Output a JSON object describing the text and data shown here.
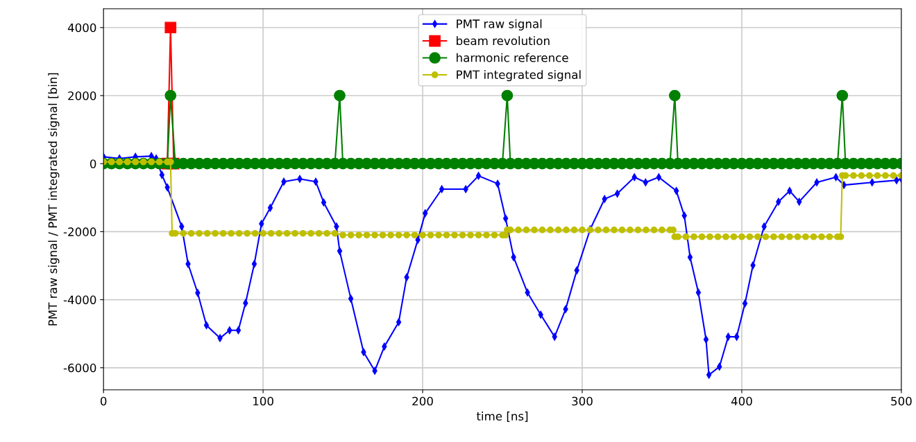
{
  "chart_data": {
    "type": "line",
    "xlabel": "time [ns]",
    "ylabel": "PMT raw signal / PMT integrated signal [bin]",
    "xlim": [
      0,
      500
    ],
    "xticks": [
      0,
      100,
      200,
      300,
      400,
      500
    ],
    "ylim": [
      -6650,
      4550
    ],
    "yticks": [
      -6000,
      -4000,
      -2000,
      0,
      2000,
      4000
    ],
    "grid": true,
    "legend": "top",
    "line_style": "solid",
    "series": [
      {
        "name": "PMT raw signal",
        "color": "#0000ff",
        "marker": "diamond",
        "x": [
          0,
          10,
          20,
          30,
          33,
          36.6,
          40,
          49,
          53,
          59,
          64.5,
          73,
          79,
          84.5,
          89,
          94.5,
          99,
          104.5,
          113,
          123,
          133,
          138,
          146,
          148,
          155,
          163,
          170,
          176,
          185,
          190,
          197,
          201.6,
          212,
          227,
          235,
          247,
          252,
          257,
          265.7,
          274,
          282.7,
          289.6,
          296.6,
          305,
          314,
          322,
          332.7,
          339.7,
          348,
          359,
          364,
          367.6,
          372.8,
          377.6,
          379.4,
          386,
          391.5,
          396.8,
          402,
          407,
          414,
          423,
          430,
          436,
          447,
          459,
          464,
          481.7,
          497,
          500
        ],
        "values": [
          200,
          150,
          200,
          220,
          150,
          -330,
          -700,
          -1850,
          -2950,
          -3800,
          -4750,
          -5130,
          -4900,
          -4900,
          -4100,
          -2950,
          -1770,
          -1300,
          -530,
          -450,
          -530,
          -1140,
          -1850,
          -2570,
          -3970,
          -5540,
          -6090,
          -5380,
          -4660,
          -3340,
          -2240,
          -1460,
          -750,
          -750,
          -360,
          -590,
          -1610,
          -2750,
          -3790,
          -4440,
          -5090,
          -4280,
          -3140,
          -1930,
          -1040,
          -880,
          -400,
          -550,
          -400,
          -800,
          -1530,
          -2750,
          -3790,
          -5170,
          -6210,
          -5970,
          -5090,
          -5090,
          -4110,
          -2990,
          -1850,
          -1120,
          -800,
          -1120,
          -550,
          -400,
          -630,
          -550,
          -490,
          -450
        ]
      },
      {
        "name": "beam revolution",
        "color": "#ff0000",
        "marker": "square",
        "x": [
          40,
          42,
          44
        ],
        "values": [
          0,
          4000,
          0
        ]
      },
      {
        "name": "harmonic reference",
        "color": "#008000",
        "marker": "circle",
        "x": [
          0,
          5,
          10,
          15,
          20,
          25,
          30,
          35,
          40,
          42,
          45,
          50,
          55,
          60,
          65,
          70,
          75,
          80,
          85,
          90,
          95,
          100,
          105,
          110,
          115,
          120,
          125,
          130,
          135,
          140,
          145,
          148,
          150,
          155,
          160,
          165,
          170,
          175,
          180,
          185,
          190,
          195,
          200,
          205,
          210,
          215,
          220,
          225,
          230,
          235,
          240,
          245,
          250,
          253,
          255,
          260,
          265,
          270,
          275,
          280,
          285,
          290,
          295,
          300,
          305,
          310,
          315,
          320,
          325,
          330,
          335,
          340,
          345,
          350,
          355,
          358,
          360,
          365,
          370,
          375,
          380,
          385,
          390,
          395,
          400,
          405,
          410,
          415,
          420,
          425,
          430,
          435,
          440,
          445,
          450,
          455,
          460,
          463,
          465,
          470,
          475,
          480,
          485,
          490,
          495,
          500
        ],
        "values": [
          0,
          0,
          0,
          0,
          0,
          0,
          0,
          0,
          0,
          2000,
          0,
          0,
          0,
          0,
          0,
          0,
          0,
          0,
          0,
          0,
          0,
          0,
          0,
          0,
          0,
          0,
          0,
          0,
          0,
          0,
          0,
          2000,
          0,
          0,
          0,
          0,
          0,
          0,
          0,
          0,
          0,
          0,
          0,
          0,
          0,
          0,
          0,
          0,
          0,
          0,
          0,
          0,
          0,
          2000,
          0,
          0,
          0,
          0,
          0,
          0,
          0,
          0,
          0,
          0,
          0,
          0,
          0,
          0,
          0,
          0,
          0,
          0,
          0,
          0,
          0,
          2000,
          0,
          0,
          0,
          0,
          0,
          0,
          0,
          0,
          0,
          0,
          0,
          0,
          0,
          0,
          0,
          0,
          0,
          0,
          0,
          0,
          0,
          2000,
          0,
          0,
          0,
          0,
          0,
          0,
          0,
          0
        ]
      },
      {
        "name": "PMT integrated signal",
        "color": "#bfbf00",
        "marker": "circle",
        "x": [
          0,
          5,
          10,
          15,
          20,
          25,
          30,
          35,
          40,
          42,
          43,
          45,
          50,
          55,
          60,
          65,
          70,
          75,
          80,
          85,
          90,
          95,
          100,
          105,
          110,
          115,
          120,
          125,
          130,
          135,
          140,
          145,
          150,
          155,
          160,
          165,
          170,
          175,
          180,
          185,
          190,
          195,
          200,
          205,
          210,
          215,
          220,
          225,
          230,
          235,
          240,
          245,
          250,
          252,
          253,
          255,
          260,
          265,
          270,
          275,
          280,
          285,
          290,
          295,
          300,
          305,
          310,
          315,
          320,
          325,
          330,
          335,
          340,
          345,
          350,
          355,
          357,
          358,
          360,
          365,
          370,
          375,
          380,
          385,
          390,
          395,
          400,
          405,
          410,
          415,
          420,
          425,
          430,
          435,
          440,
          445,
          450,
          455,
          460,
          462,
          463,
          465,
          470,
          475,
          480,
          485,
          490,
          495,
          500
        ],
        "values": [
          50,
          50,
          50,
          50,
          50,
          50,
          50,
          50,
          50,
          50,
          -2050,
          -2050,
          -2050,
          -2050,
          -2050,
          -2050,
          -2050,
          -2050,
          -2050,
          -2050,
          -2050,
          -2050,
          -2050,
          -2050,
          -2050,
          -2050,
          -2050,
          -2050,
          -2050,
          -2050,
          -2050,
          -2050,
          -2100,
          -2100,
          -2100,
          -2100,
          -2100,
          -2100,
          -2100,
          -2100,
          -2100,
          -2100,
          -2100,
          -2100,
          -2100,
          -2100,
          -2100,
          -2100,
          -2100,
          -2100,
          -2100,
          -2100,
          -2100,
          -2100,
          -1950,
          -1950,
          -1950,
          -1950,
          -1950,
          -1950,
          -1950,
          -1950,
          -1950,
          -1950,
          -1950,
          -1950,
          -1950,
          -1950,
          -1950,
          -1950,
          -1950,
          -1950,
          -1950,
          -1950,
          -1950,
          -1950,
          -1950,
          -2150,
          -2150,
          -2150,
          -2150,
          -2150,
          -2150,
          -2150,
          -2150,
          -2150,
          -2150,
          -2150,
          -2150,
          -2150,
          -2150,
          -2150,
          -2150,
          -2150,
          -2150,
          -2150,
          -2150,
          -2150,
          -2150,
          -2150,
          -350,
          -350,
          -350,
          -350,
          -350,
          -350,
          -350,
          -350,
          -350
        ]
      }
    ]
  }
}
